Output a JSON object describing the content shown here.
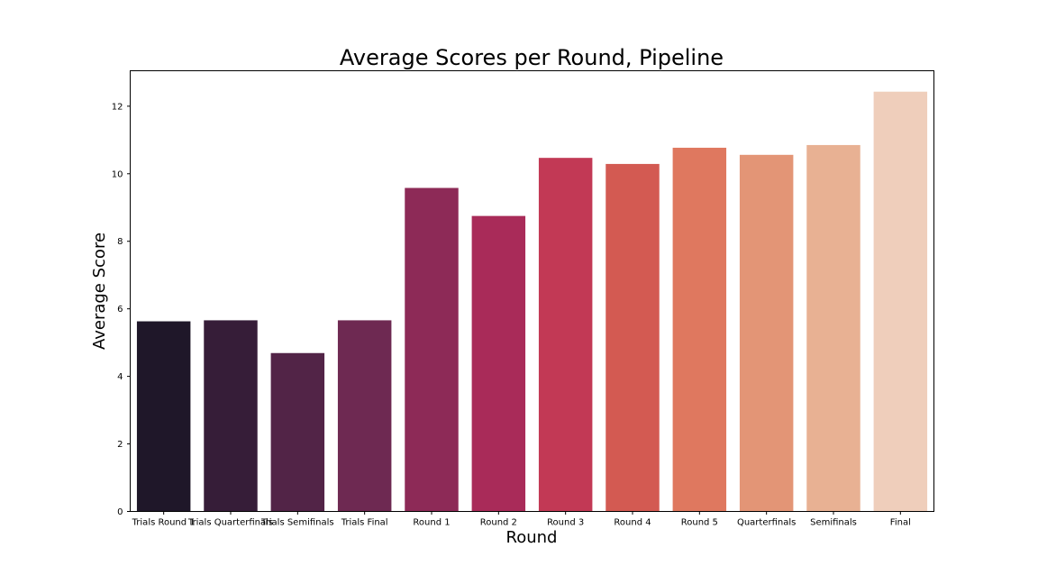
{
  "chart_data": {
    "type": "bar",
    "title": "Average Scores per Round, Pipeline",
    "xlabel": "Round",
    "ylabel": "Average Score",
    "categories": [
      "Trials Round 1",
      "Trials Quarterfinals",
      "Trials Semifinals",
      "Trials Final",
      "Round 1",
      "Round 2",
      "Round 3",
      "Round 4",
      "Round 5",
      "Quarterfinals",
      "Semifinals",
      "Final"
    ],
    "values": [
      5.63,
      5.66,
      4.69,
      5.66,
      9.58,
      8.75,
      10.47,
      10.29,
      10.77,
      10.56,
      10.85,
      12.43
    ],
    "colors": [
      "#1f1729",
      "#361d38",
      "#522447",
      "#6e2952",
      "#8d2a57",
      "#a92b59",
      "#c23955",
      "#d35a52",
      "#df785f",
      "#e39576",
      "#e8b193",
      "#efcebb"
    ],
    "yticks": [
      0,
      2,
      4,
      6,
      8,
      10,
      12
    ],
    "ylim": [
      0,
      13.05
    ],
    "grid": false,
    "legend": "none"
  }
}
